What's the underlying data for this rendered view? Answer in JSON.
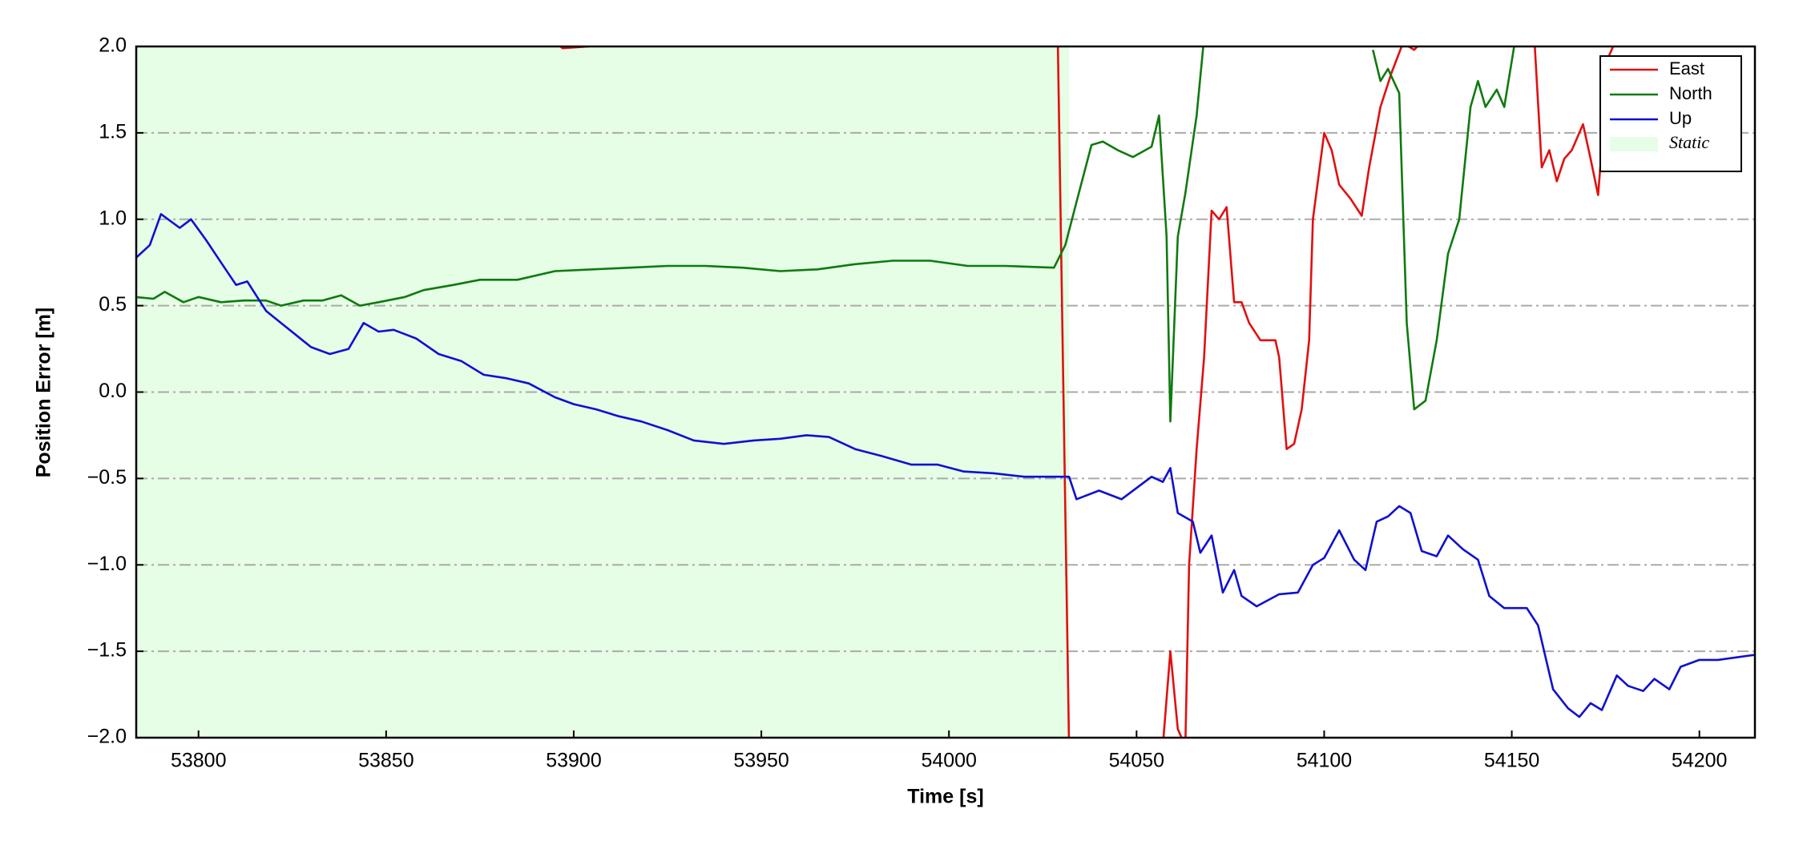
{
  "chart_data": {
    "type": "line",
    "xlabel": "Time [s]",
    "ylabel": "Position Error [m]",
    "xlim": [
      53783.4,
      54214.8
    ],
    "ylim": [
      -2.0,
      2.0
    ],
    "xticks": [
      53800,
      53850,
      53900,
      53950,
      54000,
      54050,
      54100,
      54150,
      54200
    ],
    "yticks": [
      {
        "value": -2.0,
        "label": "−2.0"
      },
      {
        "value": -1.5,
        "label": "−1.5"
      },
      {
        "value": -1.0,
        "label": "−1.0"
      },
      {
        "value": -0.5,
        "label": "−0.5"
      },
      {
        "value": 0.0,
        "label": "0.0"
      },
      {
        "value": 0.5,
        "label": "0.5"
      },
      {
        "value": 1.0,
        "label": "1.0"
      },
      {
        "value": 1.5,
        "label": "1.5"
      },
      {
        "value": 2.0,
        "label": "2.0"
      }
    ],
    "grid": "y",
    "legend": "upper right",
    "spans": [
      {
        "name": "Static",
        "color": "#e6fde6",
        "x": [
          53783.4,
          54032
        ]
      }
    ],
    "series": [
      {
        "name": "East",
        "color": "#e01010",
        "x": [
          53894,
          53897,
          53904,
          53906,
          53950,
          54029,
          54032,
          54045,
          54057,
          54059,
          54061,
          54063,
          54064,
          54066,
          54068,
          54070,
          54072,
          54074,
          54076,
          54078,
          54080,
          54083,
          54087,
          54088,
          54090,
          54092,
          54094,
          54096,
          54097,
          54100,
          54102,
          54104,
          54107,
          54110,
          54112,
          54115,
          54118,
          54121,
          54124,
          54127,
          54140,
          54156,
          54158,
          54160,
          54162,
          54164,
          54166,
          54169,
          54171,
          54173,
          54176,
          54178
        ],
        "values": [
          2.05,
          1.99,
          2.0,
          2.05,
          null,
          2.05,
          -2.05,
          null,
          -2.05,
          -1.5,
          -1.95,
          -2.05,
          -1.0,
          -0.33,
          0.2,
          1.05,
          1.0,
          1.07,
          0.52,
          0.52,
          0.4,
          0.3,
          0.3,
          0.2,
          -0.33,
          -0.3,
          -0.1,
          0.3,
          1.0,
          1.5,
          1.4,
          1.2,
          1.12,
          1.02,
          1.3,
          1.65,
          1.85,
          2.02,
          1.98,
          2.05,
          null,
          2.05,
          1.3,
          1.4,
          1.22,
          1.35,
          1.4,
          1.55,
          1.35,
          1.14,
          1.95,
          2.05
        ]
      },
      {
        "name": "North",
        "color": "#0f7a0f",
        "x": [
          53783,
          53788,
          53791,
          53796,
          53800,
          53806,
          53812,
          53818,
          53822,
          53828,
          53833,
          53838,
          53843,
          53848,
          53855,
          53860,
          53868,
          53875,
          53885,
          53895,
          53905,
          53915,
          53925,
          53935,
          53945,
          53955,
          53965,
          53975,
          53985,
          53995,
          54005,
          54015,
          54028,
          54031,
          54034,
          54038,
          54041,
          54045,
          54049,
          54054,
          54056,
          54058,
          54059,
          54061,
          54063,
          54066,
          54068,
          54090,
          54113,
          54115,
          54117,
          54120,
          54122,
          54124,
          54127,
          54130,
          54133,
          54136,
          54139,
          54141,
          54143,
          54146,
          54148,
          54151
        ],
        "values": [
          0.55,
          0.54,
          0.58,
          0.52,
          0.55,
          0.52,
          0.53,
          0.53,
          0.5,
          0.53,
          0.53,
          0.56,
          0.5,
          0.52,
          0.55,
          0.59,
          0.62,
          0.65,
          0.65,
          0.7,
          0.71,
          0.72,
          0.73,
          0.73,
          0.72,
          0.7,
          0.71,
          0.74,
          0.76,
          0.76,
          0.73,
          0.73,
          0.72,
          0.85,
          1.1,
          1.43,
          1.45,
          1.4,
          1.36,
          1.42,
          1.6,
          0.9,
          -0.17,
          0.9,
          1.15,
          1.6,
          2.05,
          null,
          1.98,
          1.8,
          1.87,
          1.73,
          0.4,
          -0.1,
          -0.05,
          0.3,
          0.8,
          1.0,
          1.65,
          1.8,
          1.65,
          1.75,
          1.65,
          2.05
        ]
      },
      {
        "name": "Up",
        "color": "#1010d0",
        "x": [
          53783,
          53787,
          53790,
          53795,
          53798,
          53802,
          53806,
          53810,
          53813,
          53818,
          53822,
          53826,
          53830,
          53835,
          53840,
          53844,
          53848,
          53852,
          53858,
          53864,
          53870,
          53876,
          53882,
          53888,
          53895,
          53900,
          53906,
          53912,
          53918,
          53925,
          53932,
          53940,
          53948,
          53955,
          53962,
          53968,
          53975,
          53982,
          53990,
          53997,
          54004,
          54012,
          54020,
          54028,
          54032,
          54034,
          54040,
          54046,
          54054,
          54057,
          54059,
          54061,
          54065,
          54067,
          54070,
          54073,
          54076,
          54078,
          54082,
          54088,
          54093,
          54097,
          54100,
          54104,
          54108,
          54111,
          54114,
          54117,
          54120,
          54123,
          54126,
          54130,
          54133,
          54137,
          54141,
          54144,
          54148,
          54154,
          54157,
          54161,
          54165,
          54168,
          54171,
          54174,
          54178,
          54181,
          54185,
          54188,
          54192,
          54195,
          54200,
          54205,
          54215
        ],
        "values": [
          0.77,
          0.85,
          1.03,
          0.95,
          1.0,
          0.88,
          0.75,
          0.62,
          0.64,
          0.47,
          0.4,
          0.33,
          0.26,
          0.22,
          0.25,
          0.4,
          0.35,
          0.36,
          0.31,
          0.22,
          0.18,
          0.1,
          0.08,
          0.05,
          -0.03,
          -0.07,
          -0.1,
          -0.14,
          -0.17,
          -0.22,
          -0.28,
          -0.3,
          -0.28,
          -0.27,
          -0.25,
          -0.26,
          -0.33,
          -0.37,
          -0.42,
          -0.42,
          -0.46,
          -0.47,
          -0.49,
          -0.49,
          -0.49,
          -0.62,
          -0.57,
          -0.62,
          -0.49,
          -0.52,
          -0.44,
          -0.7,
          -0.75,
          -0.93,
          -0.83,
          -1.16,
          -1.03,
          -1.18,
          -1.24,
          -1.17,
          -1.16,
          -1.0,
          -0.96,
          -0.8,
          -0.97,
          -1.03,
          -0.75,
          -0.72,
          -0.66,
          -0.7,
          -0.92,
          -0.95,
          -0.83,
          -0.91,
          -0.97,
          -1.18,
          -1.25,
          -1.25,
          -1.35,
          -1.72,
          -1.83,
          -1.88,
          -1.8,
          -1.84,
          -1.64,
          -1.7,
          -1.73,
          -1.66,
          -1.72,
          -1.59,
          -1.55,
          -1.55,
          -1.52
        ]
      }
    ]
  }
}
